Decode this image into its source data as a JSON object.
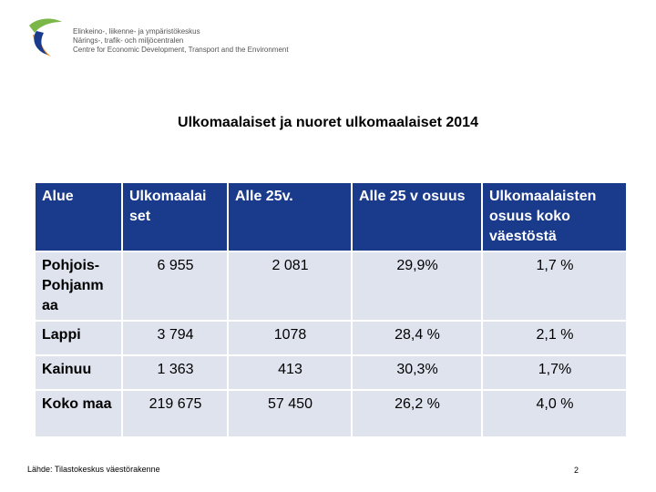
{
  "header": {
    "org_lines": [
      "Elinkeino-, liikenne- ja ympäristökeskus",
      "Närings-, trafik- och miljöcentralen",
      "Centre for Economic Development, Transport and the Environment"
    ],
    "logo_colors": [
      "#7ab648",
      "#e98a1f",
      "#1a3a8c"
    ]
  },
  "title": "Ulkomaalaiset ja nuoret ulkomaalaiset 2014",
  "table": {
    "headers": [
      "Alue",
      "Ulkomaalai set",
      "Alle 25v.",
      "Alle 25 v osuus",
      "Ulkomaalaisten osuus koko väestöstä"
    ],
    "rows": [
      {
        "region": "Pohjois-Pohjanm aa",
        "foreigners": "6 955",
        "under25": "2 081",
        "under25_share": "29,9%",
        "share_total": "1,7 %"
      },
      {
        "region": "Lappi",
        "foreigners": "3 794",
        "under25": "1078",
        "under25_share": "28,4 %",
        "share_total": "2,1 %"
      },
      {
        "region": "Kainuu",
        "foreigners": "1 363",
        "under25": "413",
        "under25_share": "30,3%",
        "share_total": "1,7%"
      },
      {
        "region": "Koko maa",
        "foreigners": "219 675",
        "under25": "57 450",
        "under25_share": "26,2 %",
        "share_total": "4,0 %"
      }
    ],
    "header_color": "#1a3a8c",
    "row_color": "#dfe3ee"
  },
  "footer": {
    "source": "Lähde: Tilastokeskus väestörakenne",
    "page_number": "2"
  }
}
